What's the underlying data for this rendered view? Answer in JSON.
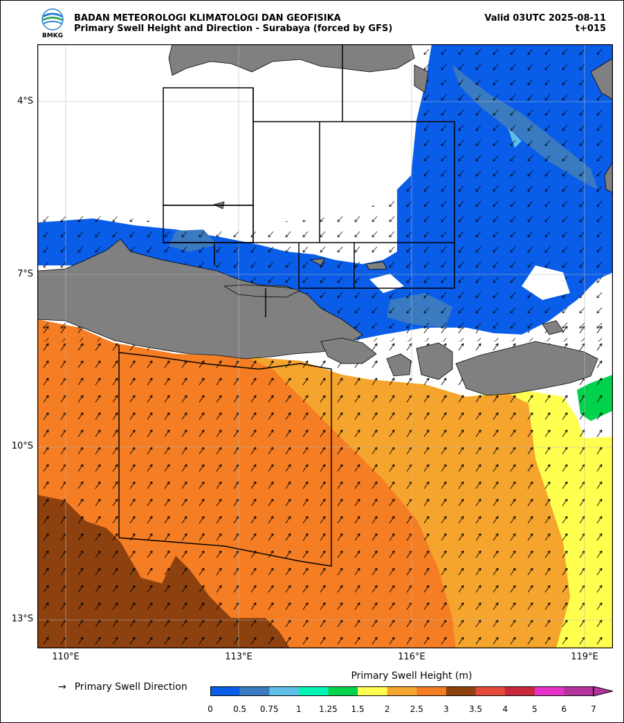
{
  "header": {
    "agency": "BADAN METEOROLOGI KLIMATOLOGI DAN GEOFISIKA",
    "product": "Primary Swell Height and Direction - Surabaya (forced by GFS)",
    "valid": "Valid 03UTC 2025-08-11",
    "lead": "t+015",
    "logo_text": "BMKG"
  },
  "axes": {
    "lat_labels": [
      "4°S",
      "7°S",
      "10°S",
      "13°S"
    ],
    "lon_labels": [
      "110°E",
      "113°E",
      "116°E",
      "119°E"
    ]
  },
  "legend": {
    "direction_label": "Primary Swell Direction",
    "direction_symbol": "→",
    "colorbar_title": "Primary Swell Height (m)",
    "colorbar_ticks": [
      "0",
      "0.5",
      "0.75",
      "1",
      "1.25",
      "1.5",
      "2",
      "2.5",
      "3",
      "3.5",
      "4",
      "5",
      "6",
      "7"
    ],
    "colorbar_colors": [
      "#0a5de8",
      "#3a7ac0",
      "#5dbfe8",
      "#00f5b4",
      "#00d24b",
      "#ffff50",
      "#f5a52d",
      "#f57d23",
      "#8c410f",
      "#e3483a",
      "#c8283c",
      "#e632c8",
      "#b4329b"
    ]
  },
  "colors": {
    "land": "#808080",
    "swell_very_low": "#0a5de8",
    "swell_low": "#3a7ac0",
    "swell_yellow": "#ffff50",
    "swell_lightorange": "#f5a52d",
    "swell_orange": "#f57d23",
    "swell_brown": "#8c410f"
  }
}
